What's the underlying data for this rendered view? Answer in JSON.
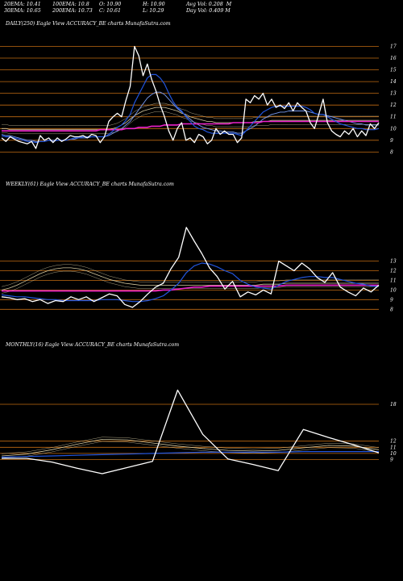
{
  "header": {
    "ema20": "20EMA: 10.41",
    "ema100": "100EMA: 10.8",
    "open": "O: 10.90",
    "high": "H: 10.90",
    "avg_vol": "Avg Vol: 0.208  M",
    "ema30": "30EMA: 10.65",
    "ema200": "200EMA: 10.73",
    "close": "C: 10.61",
    "low": "L: 10.29",
    "day_vol": "Day Vol: 0.409 M"
  },
  "colors": {
    "background": "#000000",
    "price": "#ffffff",
    "ema_fast": "#2255dd",
    "ema_mid": "#7799ee",
    "ema_pink": "#ee22cc",
    "level_lines": "#c06a12",
    "ema_slow": "#d4c9a0"
  },
  "chart_data": [
    {
      "type": "line",
      "title": "DAILY(250) Eagle   View  ACCURACY_BE charts MunafaSutra.com",
      "y_ticks": [
        "17",
        "16",
        "15",
        "14",
        "13",
        "12",
        "11",
        "10",
        "9",
        "8"
      ],
      "y_tick_values": [
        17,
        16,
        15,
        14,
        13,
        12,
        11,
        10,
        9,
        8
      ],
      "ylim": [
        7.2,
        18.2
      ],
      "levels": [
        17,
        16,
        15,
        14,
        13,
        12,
        11,
        10,
        9,
        8
      ],
      "series": [
        {
          "role": "price",
          "values": [
            9.2,
            8.9,
            9.3,
            9.1,
            8.9,
            8.8,
            8.7,
            8.9,
            8.3,
            9.4,
            9.0,
            9.2,
            8.8,
            9.2,
            8.9,
            9.1,
            9.4,
            9.3,
            9.3,
            9.4,
            9.2,
            9.5,
            9.4,
            8.8,
            9.3,
            10.6,
            11.0,
            11.3,
            11.0,
            12.4,
            13.6,
            17.0,
            16.2,
            14.5,
            15.5,
            14.2,
            13.2,
            12.0,
            11.0,
            9.8,
            9.0,
            10.0,
            10.5,
            9.0,
            9.2,
            8.8,
            9.5,
            9.3,
            8.7,
            9.0,
            10.0,
            9.5,
            9.8,
            9.5,
            9.5,
            8.8,
            9.2,
            12.5,
            12.2,
            12.8,
            12.5,
            13.0,
            12.0,
            12.5,
            11.8,
            12.0,
            11.7,
            12.2,
            11.5,
            12.2,
            11.8,
            11.5,
            10.5,
            10.0,
            11.2,
            12.5,
            10.5,
            9.8,
            9.5,
            9.3,
            9.8,
            9.5,
            10.0,
            9.3,
            9.8,
            9.4,
            10.4,
            10.0,
            10.5
          ]
        },
        {
          "role": "ema_fast",
          "values": [
            9.4,
            9.3,
            9.3,
            9.2,
            9.1,
            9.0,
            8.9,
            8.9,
            8.8,
            8.9,
            8.9,
            9.0,
            8.9,
            9.0,
            9.0,
            9.0,
            9.1,
            9.2,
            9.2,
            9.3,
            9.3,
            9.3,
            9.3,
            9.3,
            9.3,
            9.5,
            9.8,
            10.1,
            10.3,
            10.7,
            11.2,
            12.2,
            12.9,
            13.6,
            14.3,
            14.6,
            14.6,
            14.3,
            13.8,
            13.0,
            12.3,
            11.8,
            11.5,
            11.0,
            10.6,
            10.2,
            10.0,
            9.9,
            9.7,
            9.6,
            9.6,
            9.6,
            9.6,
            9.6,
            9.6,
            9.5,
            9.4,
            9.8,
            10.2,
            10.6,
            11.0,
            11.4,
            11.6,
            11.8,
            11.9,
            11.9,
            11.9,
            11.9,
            11.9,
            11.9,
            11.9,
            11.8,
            11.6,
            11.3,
            11.2,
            11.2,
            11.0,
            10.8,
            10.6,
            10.4,
            10.3,
            10.2,
            10.1,
            10.0,
            10.0,
            9.9,
            9.9,
            9.9,
            10.0
          ]
        },
        {
          "role": "ema_mid",
          "values": [
            9.5,
            9.4,
            9.4,
            9.3,
            9.2,
            9.1,
            9.0,
            9.0,
            8.9,
            8.9,
            8.9,
            9.0,
            9.0,
            9.0,
            9.0,
            9.0,
            9.1,
            9.1,
            9.2,
            9.2,
            9.2,
            9.3,
            9.3,
            9.3,
            9.3,
            9.4,
            9.6,
            9.8,
            10.0,
            10.3,
            10.6,
            11.1,
            11.6,
            12.1,
            12.6,
            12.9,
            13.1,
            13.1,
            12.9,
            12.5,
            12.1,
            11.7,
            11.4,
            11.1,
            10.8,
            10.5,
            10.3,
            10.1,
            10.0,
            9.9,
            9.8,
            9.8,
            9.7,
            9.7,
            9.7,
            9.6,
            9.6,
            9.8,
            10.0,
            10.2,
            10.5,
            10.8,
            11.0,
            11.2,
            11.3,
            11.4,
            11.4,
            11.5,
            11.5,
            11.5,
            11.5,
            11.5,
            11.4,
            11.3,
            11.2,
            11.2,
            11.1,
            11.0,
            10.9,
            10.8,
            10.7,
            10.6,
            10.5,
            10.4,
            10.4,
            10.3,
            10.3,
            10.3,
            10.3
          ]
        },
        {
          "role": "ema_pink",
          "values": [
            9.8,
            9.8,
            9.8,
            9.8,
            9.8,
            9.8,
            9.8,
            9.8,
            9.8,
            9.8,
            9.8,
            9.8,
            9.8,
            9.8,
            9.8,
            9.8,
            9.8,
            9.8,
            9.8,
            9.8,
            9.8,
            9.8,
            9.8,
            9.9,
            9.9,
            9.9,
            9.9,
            9.9,
            9.9,
            10.0,
            10.0,
            10.0,
            10.1,
            10.1,
            10.1,
            10.2,
            10.2,
            10.2,
            10.3,
            10.3,
            10.3,
            10.3,
            10.4,
            10.4,
            10.4,
            10.4,
            10.4,
            10.4,
            10.4,
            10.4,
            10.4,
            10.4,
            10.4,
            10.4,
            10.5,
            10.5,
            10.5,
            10.5,
            10.5,
            10.5,
            10.5,
            10.6,
            10.6,
            10.6,
            10.6,
            10.6,
            10.6,
            10.6,
            10.6,
            10.6,
            10.6,
            10.6,
            10.6,
            10.6,
            10.6,
            10.6,
            10.6,
            10.6,
            10.6,
            10.6,
            10.6,
            10.6,
            10.6,
            10.6,
            10.6,
            10.6,
            10.6,
            10.6,
            10.6
          ]
        },
        {
          "role": "ema_slow",
          "values": [
            10.0,
            10.0,
            9.9,
            9.9,
            9.9,
            9.9,
            9.9,
            9.9,
            9.9,
            9.9,
            9.9,
            9.9,
            9.9,
            9.9,
            9.9,
            9.9,
            9.9,
            9.9,
            9.9,
            9.9,
            9.9,
            9.9,
            9.9,
            9.9,
            9.9,
            9.9,
            10.0,
            10.1,
            10.3,
            10.5,
            10.8,
            11.1,
            11.3,
            11.5,
            11.6,
            11.7,
            11.8,
            11.8,
            11.8,
            11.7,
            11.6,
            11.5,
            11.3,
            11.2,
            11.0,
            10.9,
            10.8,
            10.7,
            10.6,
            10.6,
            10.5,
            10.5,
            10.5,
            10.5,
            10.5,
            10.5,
            10.5,
            10.5,
            10.5,
            10.6,
            10.6,
            10.6,
            10.6,
            10.7,
            10.7,
            10.7,
            10.7,
            10.7,
            10.7,
            10.7,
            10.7,
            10.7,
            10.7,
            10.7,
            10.7,
            10.7,
            10.7,
            10.7,
            10.7,
            10.7,
            10.7,
            10.7,
            10.7,
            10.7,
            10.7,
            10.7,
            10.7,
            10.7,
            10.7
          ]
        }
      ]
    },
    {
      "type": "line",
      "title": "WEEKLY(61) Eagle   View  ACCURACY_BE charts MunafaSutra.com",
      "y_ticks": [
        "13",
        "12",
        "11",
        "10",
        "9",
        "8"
      ],
      "y_tick_values": [
        13,
        12,
        11,
        10,
        9,
        8
      ],
      "ylim": [
        6.6,
        20.0
      ],
      "levels": [
        13,
        12,
        11,
        10,
        9,
        8
      ],
      "series": [
        {
          "role": "price",
          "values": [
            9.3,
            9.2,
            9.0,
            9.1,
            8.8,
            9.0,
            8.6,
            8.9,
            8.8,
            9.3,
            9.0,
            9.3,
            8.8,
            9.2,
            9.6,
            9.4,
            8.5,
            8.2,
            8.8,
            9.6,
            10.3,
            10.7,
            12.2,
            13.4,
            16.5,
            15.1,
            13.8,
            12.3,
            11.4,
            10.1,
            10.9,
            9.3,
            9.8,
            9.5,
            10.0,
            9.6,
            13.0,
            12.5,
            12.0,
            12.8,
            12.2,
            11.3,
            10.8,
            11.8,
            10.3,
            9.8,
            9.4,
            10.2,
            9.8,
            10.5
          ]
        },
        {
          "role": "ema_fast",
          "values": [
            9.5,
            9.4,
            9.3,
            9.3,
            9.2,
            9.1,
            9.0,
            9.0,
            8.9,
            8.9,
            8.9,
            8.9,
            8.9,
            9.0,
            9.0,
            9.0,
            8.9,
            8.8,
            8.8,
            8.9,
            9.1,
            9.4,
            10.0,
            10.7,
            11.8,
            12.5,
            12.8,
            12.7,
            12.4,
            12.0,
            11.7,
            11.0,
            10.6,
            10.3,
            10.2,
            10.1,
            10.5,
            10.9,
            11.1,
            11.3,
            11.4,
            11.4,
            11.3,
            11.3,
            11.1,
            10.9,
            10.7,
            10.6,
            10.4,
            10.4
          ]
        },
        {
          "role": "ema_pink",
          "values": [
            9.9,
            9.9,
            9.9,
            9.9,
            9.9,
            9.9,
            9.9,
            9.9,
            9.9,
            9.9,
            9.9,
            9.9,
            9.9,
            9.9,
            9.9,
            9.9,
            9.9,
            9.9,
            9.9,
            9.9,
            9.9,
            10.0,
            10.0,
            10.1,
            10.2,
            10.3,
            10.3,
            10.4,
            10.4,
            10.4,
            10.4,
            10.4,
            10.4,
            10.4,
            10.4,
            10.4,
            10.4,
            10.5,
            10.5,
            10.5,
            10.5,
            10.5,
            10.5,
            10.5,
            10.5,
            10.5,
            10.5,
            10.5,
            10.5,
            10.5
          ]
        },
        {
          "role": "ema_slow",
          "values": [
            10.0,
            10.2,
            10.5,
            10.9,
            11.3,
            11.7,
            12.0,
            12.2,
            12.3,
            12.3,
            12.2,
            12.0,
            11.7,
            11.4,
            11.1,
            10.9,
            10.7,
            10.6,
            10.5,
            10.5,
            10.5,
            10.5,
            10.5,
            10.5,
            10.5,
            10.5,
            10.5,
            10.5,
            10.5,
            10.5,
            10.5,
            10.5,
            10.5,
            10.5,
            10.6,
            10.6,
            10.6,
            10.7,
            10.7,
            10.7,
            10.7,
            10.7,
            10.7,
            10.7,
            10.7,
            10.7,
            10.7,
            10.7,
            10.7,
            10.7
          ]
        }
      ]
    },
    {
      "type": "line",
      "title": "MONTHLY(16) Eagle   View  ACCURACY_BE charts MunafaSutra.com",
      "y_ticks": [
        "18",
        "12",
        "11",
        "10",
        "9"
      ],
      "y_tick_values": [
        18,
        12,
        11,
        10,
        9
      ],
      "ylim": [
        5.0,
        26.0
      ],
      "levels": [
        18,
        12,
        11,
        10,
        9
      ],
      "series": [
        {
          "role": "price",
          "values": [
            9.2,
            9.2,
            8.6,
            7.6,
            6.7,
            7.7,
            8.7,
            20.3,
            13.1,
            9.1,
            8.2,
            7.2,
            13.9,
            12.6,
            11.4,
            10.1
          ]
        },
        {
          "role": "ema_fast",
          "values": [
            9.4,
            9.5,
            9.6,
            9.7,
            9.8,
            9.9,
            10.0,
            10.1,
            10.2,
            10.2,
            10.2,
            10.2,
            10.3,
            10.3,
            10.3,
            10.3
          ]
        },
        {
          "role": "ema_slow",
          "values": [
            9.6,
            9.9,
            10.6,
            11.5,
            12.3,
            12.2,
            11.7,
            11.2,
            10.8,
            10.5,
            10.4,
            10.5,
            10.9,
            11.3,
            11.2,
            10.6
          ]
        }
      ]
    }
  ]
}
